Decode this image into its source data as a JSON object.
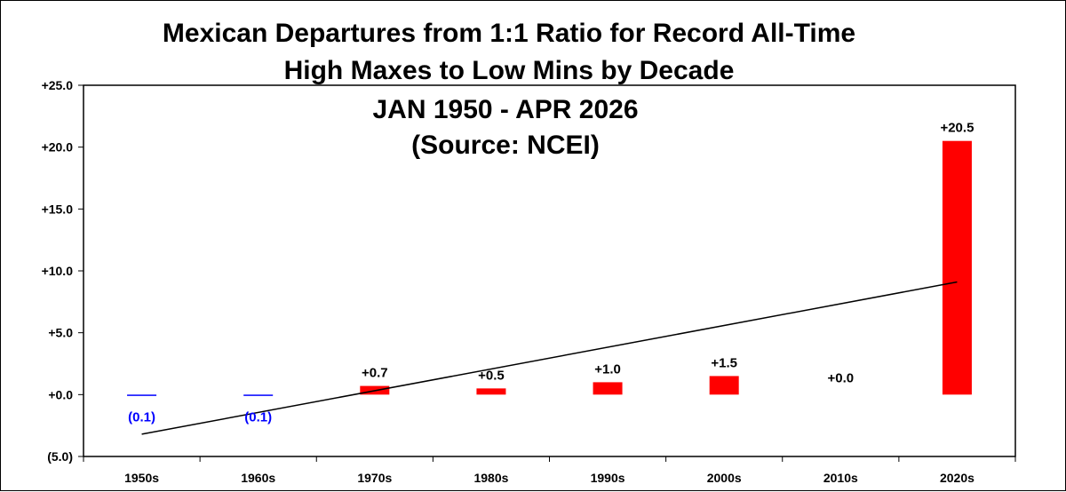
{
  "chart_data": {
    "type": "bar",
    "title_lines": [
      "Mexican Departures from 1:1 Ratio for Record All-Time",
      "High Maxes to Low Mins by Decade",
      "JAN 1950 - APR 2026",
      "(Source: NCEI)"
    ],
    "categories": [
      "1950s",
      "1960s",
      "1970s",
      "1980s",
      "1990s",
      "2000s",
      "2010s",
      "2020s"
    ],
    "values": [
      -0.1,
      -0.1,
      0.7,
      0.5,
      1.0,
      1.5,
      0.0,
      20.5
    ],
    "data_labels": [
      "(0.1)",
      "(0.1)",
      "+0.7",
      "+0.5",
      "+1.0",
      "+1.5",
      "+0.0",
      "+20.5"
    ],
    "ylim": [
      -5,
      25
    ],
    "yticks": [
      25,
      20,
      15,
      10,
      5,
      0,
      -5
    ],
    "ytick_labels": [
      "+25.0",
      "+20.0",
      "+15.0",
      "+10.0",
      "+5.0",
      "+0.0",
      "(5.0)"
    ],
    "ytick_colors": [
      "#000000",
      "#000000",
      "#000000",
      "#000000",
      "#000000",
      "#000000",
      "#0000ff"
    ],
    "trendline": {
      "start": -3.2,
      "end": 9.1,
      "color": "#000000"
    },
    "colors": {
      "positive": "#ff0000",
      "negative": "#0000ff",
      "negative_label": "#0000ff",
      "positive_label": "#000000"
    },
    "grid": false,
    "xlabel": "",
    "ylabel": ""
  }
}
